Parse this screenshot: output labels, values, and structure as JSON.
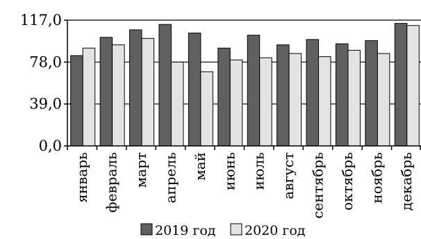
{
  "chart_data": {
    "type": "bar",
    "title": "",
    "xlabel": "",
    "ylabel": "",
    "ylim": [
      0,
      117
    ],
    "yticks": [
      0,
      39,
      78,
      117
    ],
    "ytick_labels": [
      "0,0",
      "39,0",
      "78,0",
      "117,0"
    ],
    "categories": [
      "январь",
      "февраль",
      "март",
      "апрель",
      "май",
      "июнь",
      "июль",
      "август",
      "сентябрь",
      "октябрь",
      "ноябрь",
      "декабрь"
    ],
    "series": [
      {
        "name": "2019 год",
        "color": "#606060",
        "values": [
          84,
          101,
          108,
          113,
          105,
          91,
          103,
          94,
          99,
          95,
          98,
          114
        ]
      },
      {
        "name": "2020 год",
        "color": "#e3e3e3",
        "values": [
          91,
          94,
          100,
          78,
          69,
          80,
          82,
          86,
          83,
          89,
          86,
          112
        ]
      }
    ],
    "grid": "horizontal",
    "legend_position": "bottom"
  }
}
